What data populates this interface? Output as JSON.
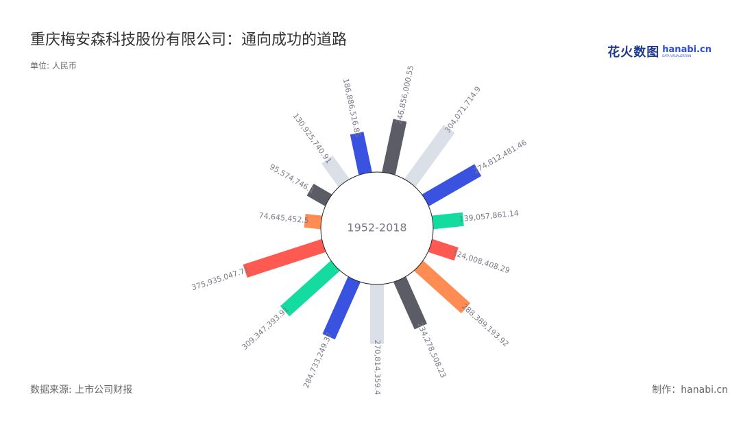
{
  "title": "重庆梅安森科技股份有限公司：通向成功的道路",
  "unit": "单位: 人民币",
  "source": "数据来源: 上市公司财报",
  "credit": "制作：hanabi.cn",
  "brand": {
    "cn": "花火数图",
    "en": "hanabi.cn",
    "tag": "DATA VISUALIZATION"
  },
  "colors": {
    "palette": [
      "#5b5c66",
      "#dadfe8",
      "#3a52e0",
      "#14dba0",
      "#ff5a52",
      "#ff8c52"
    ],
    "text": "#333333",
    "label": "#7a7c88"
  },
  "chart_data": {
    "type": "bar",
    "layout": "polar",
    "center_label": "1952-2018",
    "categories": [
      "",
      "",
      "",
      "",
      "",
      "",
      "",
      "",
      "",
      "",
      "",
      "",
      "",
      "",
      "",
      ""
    ],
    "values": [
      246856000.55,
      304071714.9,
      274812481.46,
      139057861.14,
      124008408.29,
      288389193.92,
      234278508.23,
      270814359.4,
      284733249.37,
      309347393.91,
      375935047.71,
      74645452.5,
      95574746.1,
      130925740.91,
      186886516.85
    ],
    "labels": [
      "246,856,000.55",
      "304,071,714.9",
      "274,812,481.46",
      "139,057,861.14",
      "124,008,408.29",
      "288,389,193.92",
      "234,278,508.23",
      "270,814,359.4",
      "284,733,249.37",
      "309,347,393.91",
      "375,935,047.71",
      "74,645,452.5",
      "95,574,746.1",
      "130,925,740.91",
      "186,886,516.85"
    ],
    "ylim": [
      0,
      400000000
    ]
  }
}
